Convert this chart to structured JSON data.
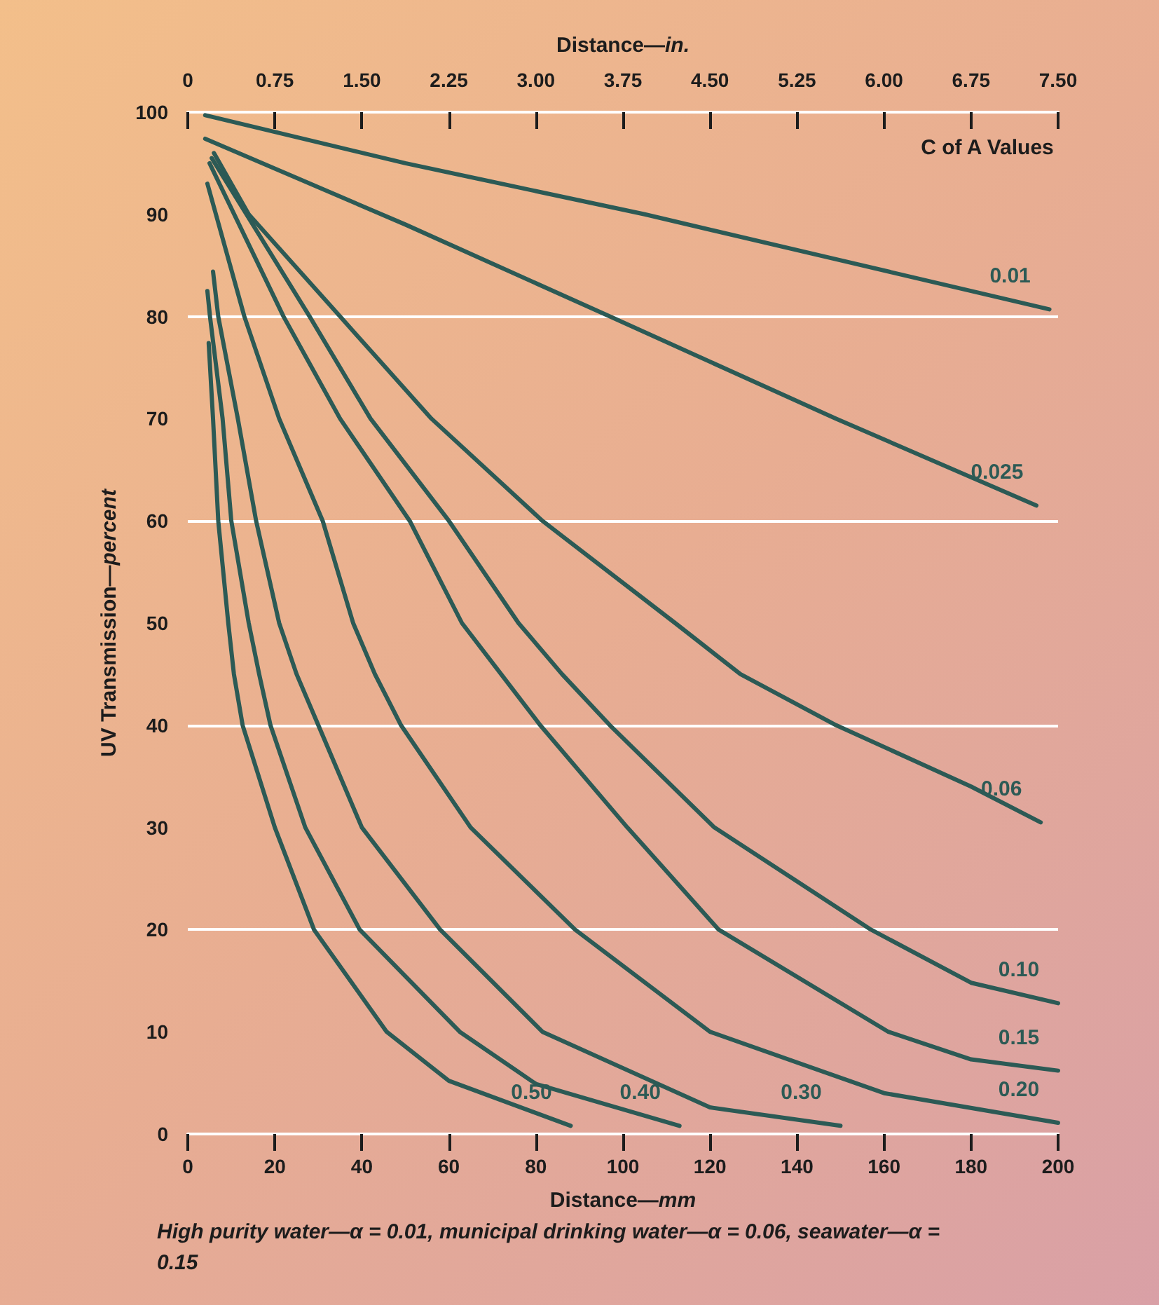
{
  "chart_data": {
    "type": "line",
    "xlabel": "Distance—mm",
    "x2label": "Distance—in.",
    "ylabel": "UV Transmission—percent",
    "legend_title": "C of A Values",
    "xlim": [
      0,
      200
    ],
    "xticks": [
      0,
      20,
      40,
      60,
      80,
      100,
      120,
      140,
      160,
      180,
      200
    ],
    "x2lim": [
      0,
      7.5
    ],
    "x2ticks": [
      0,
      0.75,
      {
        "value": 1.5,
        "label": "1.50"
      },
      2.25,
      {
        "value": 3,
        "label": "3.00"
      },
      3.75,
      {
        "value": 4.5,
        "label": "4.50"
      },
      5.25,
      {
        "value": 6,
        "label": "6.00"
      },
      6.75,
      {
        "value": 7.5,
        "label": "7.50"
      }
    ],
    "ylim": [
      0,
      100
    ],
    "yticks": [
      0,
      10,
      20,
      30,
      40,
      50,
      60,
      70,
      80,
      90,
      100
    ],
    "grid": "y",
    "series": [
      {
        "name": "0.01",
        "color": "#2c5a55",
        "x": [
          4,
          50,
          105,
          150,
          198
        ],
        "values": [
          99.7,
          95,
          90,
          85.5,
          80.7
        ]
      },
      {
        "name": "0.025",
        "color": "#2c5a55",
        "x": [
          4,
          50,
          97,
          149,
          195
        ],
        "values": [
          97.4,
          89,
          80,
          70,
          61.5
        ]
      },
      {
        "name": "0.06",
        "color": "#2c5a55",
        "x": [
          6,
          14,
          35,
          56,
          81.5,
          112,
          127,
          149,
          180,
          196
        ],
        "values": [
          96,
          90,
          80,
          70,
          60,
          50,
          45,
          40,
          34,
          30.5
        ]
      },
      {
        "name": "0.10",
        "color": "#2c5a55",
        "x": [
          5.5,
          28,
          42,
          60,
          76,
          86,
          97,
          121,
          157,
          180,
          200
        ],
        "values": [
          95.5,
          80,
          70,
          60,
          50,
          45,
          40,
          30,
          20,
          14.8,
          12.8
        ]
      },
      {
        "name": "0.15",
        "color": "#2c5a55",
        "x": [
          5,
          22,
          35,
          51,
          63,
          72,
          81,
          101,
          122,
          161,
          180,
          200
        ],
        "values": [
          95,
          80,
          70,
          60,
          50,
          45,
          40,
          30,
          20,
          10,
          7.3,
          6.2
        ]
      },
      {
        "name": "0.20",
        "color": "#2c5a55",
        "x": [
          4.5,
          13,
          21,
          31,
          38,
          43,
          49,
          65,
          89,
          120,
          160,
          200
        ],
        "values": [
          93,
          80,
          70,
          60,
          50,
          45,
          40,
          30,
          20,
          10,
          4,
          1.1
        ]
      },
      {
        "name": "0.30",
        "color": "#2c5a55",
        "x": [
          5.8,
          7,
          11.5,
          15.7,
          21,
          25,
          30,
          40,
          58,
          81.5,
          120,
          150
        ],
        "values": [
          84.4,
          80,
          70,
          60,
          50,
          45,
          40,
          30,
          20,
          10,
          2.6,
          0.8
        ]
      },
      {
        "name": "0.40",
        "color": "#2c5a55",
        "x": [
          4.5,
          5.1,
          8,
          10,
          14,
          16.4,
          19,
          27,
          39.5,
          62.5,
          80,
          113
        ],
        "values": [
          82.5,
          80,
          70,
          60,
          50,
          45,
          40,
          30,
          20,
          10,
          4.9,
          0.8
        ]
      },
      {
        "name": "0.50",
        "color": "#2c5a55",
        "x": [
          4.8,
          5.8,
          7,
          9.3,
          10.6,
          12.6,
          20,
          29,
          45.7,
          60,
          88
        ],
        "values": [
          77.4,
          70,
          60,
          50,
          45,
          40,
          30,
          20,
          10,
          5.2,
          0.8
        ]
      }
    ],
    "annotations": [
      "High purity water—α = 0.01, municipal drinking water—α = 0.06, seawater—α = 0.15"
    ]
  }
}
